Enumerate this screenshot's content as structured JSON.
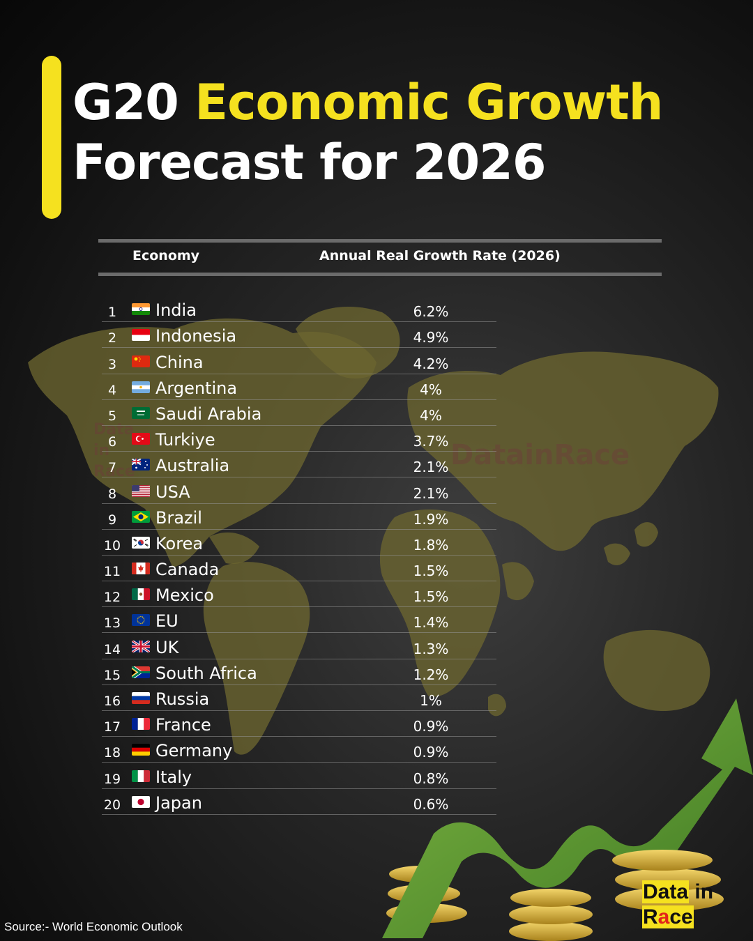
{
  "title": {
    "part1": "G20 ",
    "part2": "Economic Growth",
    "part3": "Forecast for 2026"
  },
  "watermark": "DatainRace",
  "watermark_small": "Data in Race",
  "logo": {
    "line1a": "Data",
    "line1b": " in",
    "line2a": "R",
    "line2b": "a",
    "line2c": "ce"
  },
  "source": "Source:- World Economic Outlook",
  "colors": {
    "accent": "#f5e11f",
    "background": "#1a1a1a",
    "text": "#ffffff",
    "arrow": "#5f9a32",
    "coin": "#d9b437"
  },
  "chart_data": {
    "type": "table",
    "title": "G20 Economic Growth Forecast for 2026",
    "columns": [
      "Economy",
      "Annual Real Growth Rate (2026)"
    ],
    "rows": [
      {
        "rank": "1",
        "flag": "india-flag-icon",
        "country": "India",
        "value": "6.2%"
      },
      {
        "rank": "2",
        "flag": "indonesia-flag-icon",
        "country": "Indonesia",
        "value": "4.9%"
      },
      {
        "rank": "3",
        "flag": "china-flag-icon",
        "country": "China",
        "value": "4.2%"
      },
      {
        "rank": "4",
        "flag": "argentina-flag-icon",
        "country": "Argentina",
        "value": "4%"
      },
      {
        "rank": "5",
        "flag": "saudi-arabia-flag-icon",
        "country": "Saudi Arabia",
        "value": "4%"
      },
      {
        "rank": "6",
        "flag": "turkiye-flag-icon",
        "country": "Turkiye",
        "value": "3.7%"
      },
      {
        "rank": "7",
        "flag": "australia-flag-icon",
        "country": "Australia",
        "value": "2.1%"
      },
      {
        "rank": "8",
        "flag": "usa-flag-icon",
        "country": "USA",
        "value": "2.1%"
      },
      {
        "rank": "9",
        "flag": "brazil-flag-icon",
        "country": "Brazil",
        "value": "1.9%"
      },
      {
        "rank": "10",
        "flag": "korea-flag-icon",
        "country": "Korea",
        "value": "1.8%"
      },
      {
        "rank": "11",
        "flag": "canada-flag-icon",
        "country": "Canada",
        "value": "1.5%"
      },
      {
        "rank": "12",
        "flag": "mexico-flag-icon",
        "country": "Mexico",
        "value": "1.5%"
      },
      {
        "rank": "13",
        "flag": "eu-flag-icon",
        "country": "EU",
        "value": "1.4%"
      },
      {
        "rank": "14",
        "flag": "uk-flag-icon",
        "country": "UK",
        "value": "1.3%"
      },
      {
        "rank": "15",
        "flag": "south-africa-flag-icon",
        "country": "South Africa",
        "value": "1.2%"
      },
      {
        "rank": "16",
        "flag": "russia-flag-icon",
        "country": "Russia",
        "value": "1%"
      },
      {
        "rank": "17",
        "flag": "france-flag-icon",
        "country": "France",
        "value": "0.9%"
      },
      {
        "rank": "18",
        "flag": "germany-flag-icon",
        "country": "Germany",
        "value": "0.9%"
      },
      {
        "rank": "19",
        "flag": "italy-flag-icon",
        "country": "Italy",
        "value": "0.8%"
      },
      {
        "rank": "20",
        "flag": "japan-flag-icon",
        "country": "Japan",
        "value": "0.6%"
      }
    ]
  }
}
